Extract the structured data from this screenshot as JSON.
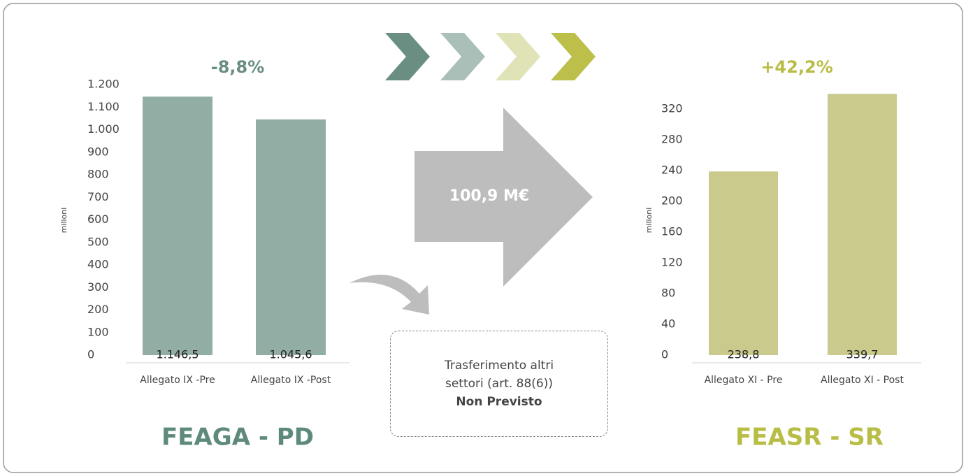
{
  "chart_data": [
    {
      "type": "bar",
      "title": "FEAGA - PD",
      "annotation": "-8,8%",
      "y_label": "milioni",
      "categories": [
        "Allegato IX -Pre",
        "Allegato IX -Post"
      ],
      "values": [
        1146.5,
        1045.6
      ],
      "value_labels": [
        "1.146,5",
        "1.045,6"
      ],
      "color": "#92ada3",
      "ylim": [
        0,
        1200
      ],
      "yticks": [
        0,
        100,
        200,
        300,
        400,
        500,
        600,
        700,
        800,
        900,
        {
          "value": 1000,
          "label": "1.000"
        },
        {
          "value": 1100,
          "label": "1.100"
        },
        {
          "value": 1200,
          "label": "1.200"
        }
      ]
    },
    {
      "type": "bar",
      "title": "FEASR - SR",
      "annotation": "+42,2%",
      "y_label": "milioni",
      "categories": [
        "Allegato XI - Pre",
        "Allegato XI - Post"
      ],
      "values": [
        238.8,
        339.7
      ],
      "value_labels": [
        "238,8",
        "339,7"
      ],
      "color": "#c9ca8b",
      "ylim": [
        0,
        360
      ],
      "yticks": [
        0,
        40,
        80,
        120,
        160,
        200,
        240,
        280,
        320
      ]
    }
  ],
  "transfer": {
    "amount": "100,9 M€",
    "text": "Trasferimento altri settori (art. 88(6))",
    "status": "Non Previsto"
  }
}
